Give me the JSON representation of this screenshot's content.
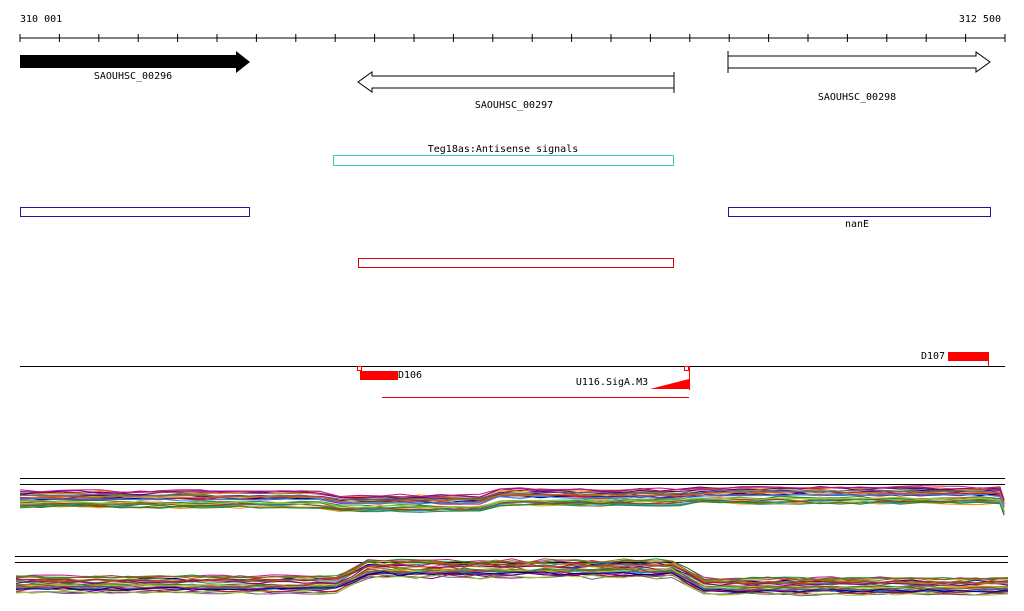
{
  "ruler": {
    "start": "310 001",
    "end": "312 500"
  },
  "genes": [
    {
      "label": "SAOUHSC_00296"
    },
    {
      "label": "SAOUHSC_00297"
    },
    {
      "label": "SAOUHSC_00298"
    }
  ],
  "features": {
    "antisense": "Teg18as:Antisense signals",
    "operon": "nanE"
  },
  "signals": {
    "d107": "D107",
    "d106": "D106",
    "promoter": "U116.SigA.M3"
  }
}
